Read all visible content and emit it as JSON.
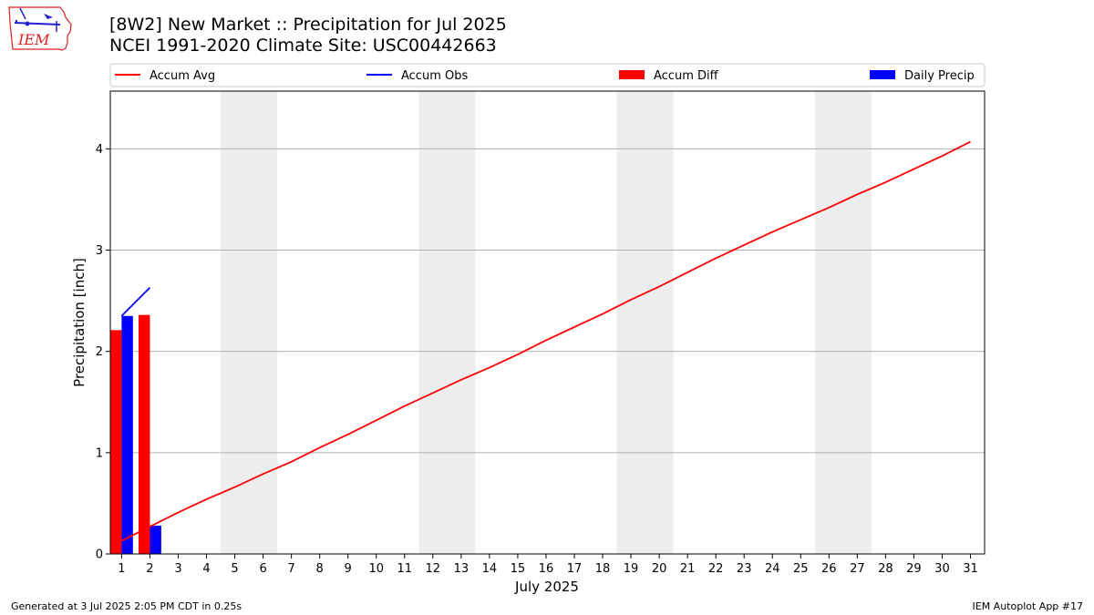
{
  "header": {
    "logo_text": "IEM",
    "title_line1": "[8W2] New Market :: Precipitation for Jul 2025",
    "title_line2": "NCEI 1991-2020 Climate Site: USC00442663"
  },
  "footer": {
    "left": "Generated at 3 Jul 2025 2:05 PM CDT in 0.25s",
    "right": "IEM Autoplot App #17"
  },
  "chart_data": {
    "type": "bar",
    "xlabel": "July 2025",
    "ylabel": "Precipitation [inch]",
    "xlim": [
      0.6,
      31.5
    ],
    "ylim": [
      0,
      4.57
    ],
    "x_ticks": [
      1,
      2,
      3,
      4,
      5,
      6,
      7,
      8,
      9,
      10,
      11,
      12,
      13,
      14,
      15,
      16,
      17,
      18,
      19,
      20,
      21,
      22,
      23,
      24,
      25,
      26,
      27,
      28,
      29,
      30,
      31
    ],
    "y_ticks": [
      0,
      1,
      2,
      3,
      4
    ],
    "grid": "y-major",
    "legend_position": "top",
    "weekend_bands": [
      [
        4.5,
        6.5
      ],
      [
        11.5,
        13.5
      ],
      [
        18.5,
        20.5
      ],
      [
        25.5,
        27.5
      ]
    ],
    "colors": {
      "accum_avg": "#ff0000",
      "accum_obs": "#0000ff",
      "accum_diff": "#ff0000",
      "daily_precip": "#0000ff",
      "weekend_band": "#eeeeee",
      "grid": "#b0b0b0"
    },
    "series": [
      {
        "name": "Accum Avg",
        "kind": "line",
        "x": [
          1,
          2,
          3,
          4,
          5,
          6,
          7,
          8,
          9,
          10,
          11,
          12,
          13,
          14,
          15,
          16,
          17,
          18,
          19,
          20,
          21,
          22,
          23,
          24,
          25,
          26,
          27,
          28,
          29,
          30,
          31
        ],
        "values": [
          0.13,
          0.27,
          0.41,
          0.54,
          0.66,
          0.79,
          0.91,
          1.05,
          1.18,
          1.32,
          1.46,
          1.59,
          1.72,
          1.84,
          1.97,
          2.11,
          2.24,
          2.37,
          2.51,
          2.64,
          2.78,
          2.92,
          3.05,
          3.18,
          3.3,
          3.42,
          3.55,
          3.67,
          3.8,
          3.93,
          4.07
        ]
      },
      {
        "name": "Accum Obs",
        "kind": "line",
        "x": [
          1,
          2
        ],
        "values": [
          2.35,
          2.63
        ]
      },
      {
        "name": "Accum Diff",
        "kind": "bar",
        "x": [
          1,
          2
        ],
        "values": [
          2.21,
          2.36
        ]
      },
      {
        "name": "Daily Precip",
        "kind": "bar",
        "x": [
          1,
          2
        ],
        "values": [
          2.35,
          0.28
        ]
      }
    ]
  }
}
